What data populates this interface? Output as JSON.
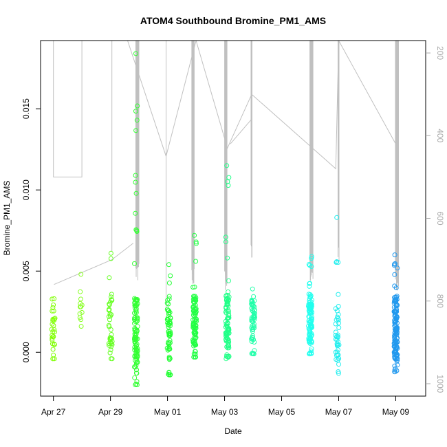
{
  "chart_data": {
    "type": "scatter",
    "title": "ATOM4 Southbound Bromine_PM1_AMS",
    "xlabel": "Date",
    "ylabel": "Bromine_PM1_AMS",
    "x_tick_labels": [
      "Apr 27",
      "Apr 29",
      "May 01",
      "May 03",
      "May 05",
      "May 07",
      "May 09"
    ],
    "x_ticks_day": [
      0,
      2,
      4,
      6,
      8,
      10,
      12
    ],
    "xlim_day": [
      -0.45,
      13.05
    ],
    "y_tick_labels": [
      "0.000",
      "0.005",
      "0.010",
      "0.015"
    ],
    "y_ticks": [
      0.0,
      0.005,
      0.01,
      0.015
    ],
    "ylim": [
      -0.0027,
      0.0192
    ],
    "right_axis": {
      "tick_labels": [
        "200",
        "400",
        "600",
        "800",
        "1000"
      ],
      "ticks": [
        200,
        400,
        600,
        800,
        1000
      ],
      "lim": [
        1030,
        170
      ],
      "color": "#aaaaaa"
    },
    "grid": false,
    "scatter_clusters": [
      {
        "day": 0.0,
        "y_min": -0.0004,
        "y_max": 0.0033,
        "n": 30,
        "color": "#7fff00"
      },
      {
        "day": 0.95,
        "y_min": 0.0016,
        "y_max": 0.0048,
        "n": 12,
        "color": "#88ff22"
      },
      {
        "day": 2.0,
        "y_min": -0.0004,
        "y_max": 0.0061,
        "n": 40,
        "color": "#66ff22"
      },
      {
        "day": 2.9,
        "y_min": -0.002,
        "y_max": 0.0184,
        "n": 110,
        "color": "#33ff33"
      },
      {
        "day": 4.05,
        "y_min": -0.0014,
        "y_max": 0.0054,
        "n": 60,
        "color": "#22ff33"
      },
      {
        "day": 4.95,
        "y_min": -0.0003,
        "y_max": 0.0072,
        "n": 100,
        "color": "#22ff44"
      },
      {
        "day": 6.1,
        "y_min": -0.0004,
        "y_max": 0.0115,
        "n": 100,
        "color": "#22ff88"
      },
      {
        "day": 7.0,
        "y_min": -0.0001,
        "y_max": 0.0039,
        "n": 60,
        "color": "#22ffaa"
      },
      {
        "day": 9.0,
        "y_min": -0.0001,
        "y_max": 0.0059,
        "n": 110,
        "color": "#22ffee"
      },
      {
        "day": 9.95,
        "y_min": -0.0013,
        "y_max": 0.0083,
        "n": 45,
        "color": "#22eeee"
      },
      {
        "day": 12.0,
        "y_min": -0.0012,
        "y_max": 0.006,
        "n": 140,
        "color": "#2299ee"
      }
    ],
    "grey_track": {
      "color": "#c0c0c0",
      "segments": [
        [
          [
            0.0,
            170
          ],
          [
            0.0,
            500
          ],
          [
            1.0,
            500
          ],
          [
            1.0,
            170
          ]
        ],
        [
          [
            0.02,
            760
          ],
          [
            2.05,
            700
          ],
          [
            2.8,
            660
          ]
        ],
        [
          [
            2.05,
            170
          ],
          [
            2.05,
            680
          ]
        ],
        [
          [
            2.6,
            170
          ],
          [
            3.95,
            450
          ],
          [
            5.0,
            170
          ]
        ],
        [
          [
            3.95,
            170
          ],
          [
            3.95,
            820
          ]
        ],
        [
          [
            5.0,
            170
          ],
          [
            6.1,
            430
          ],
          [
            6.95,
            300
          ],
          [
            9.9,
            480
          ],
          [
            10.0,
            170
          ]
        ],
        [
          [
            6.2,
            420
          ],
          [
            6.95,
            360
          ]
        ],
        [
          [
            10.0,
            170
          ],
          [
            12.0,
            420
          ],
          [
            12.1,
            170
          ]
        ]
      ],
      "vertical_bundles": [
        {
          "day": 2.95,
          "top": 170,
          "bottom": 760,
          "n": 10
        },
        {
          "day": 4.9,
          "top": 170,
          "bottom": 770,
          "n": 8
        },
        {
          "day": 6.05,
          "top": 170,
          "bottom": 780,
          "n": 8
        },
        {
          "day": 6.95,
          "top": 170,
          "bottom": 720,
          "n": 4
        },
        {
          "day": 9.05,
          "top": 170,
          "bottom": 760,
          "n": 10
        },
        {
          "day": 10.0,
          "top": 170,
          "bottom": 720,
          "n": 4
        },
        {
          "day": 12.05,
          "top": 170,
          "bottom": 780,
          "n": 10
        }
      ]
    }
  }
}
